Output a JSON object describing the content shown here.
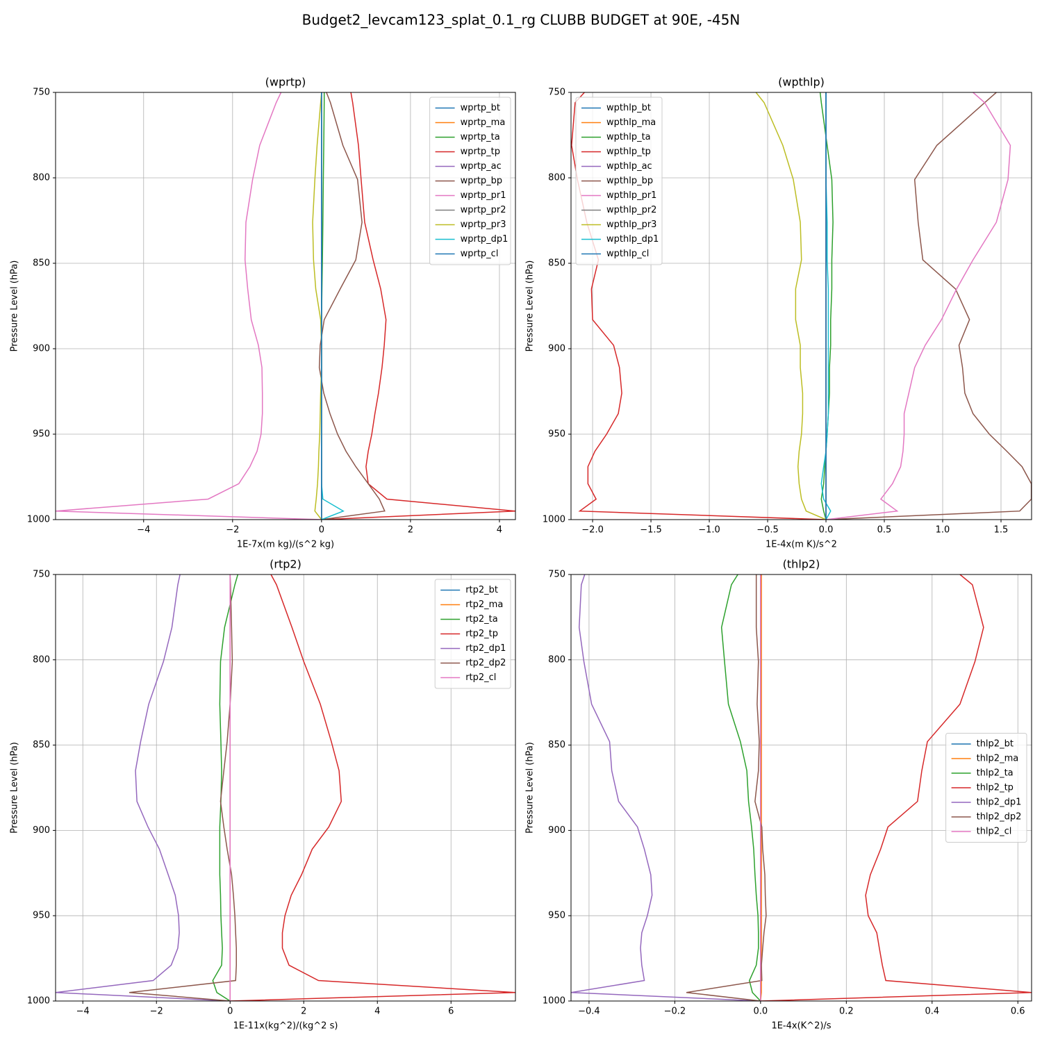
{
  "title": "Budget2_levcam123_splat_0.1_rg CLUBB BUDGET at 90E, -45N",
  "chart_data": [
    {
      "type": "line",
      "title": "(wprtp)",
      "xlabel": "1E-7x(m kg)/(s^2 kg)",
      "ylabel": "Pressure Level (hPa)",
      "y": [
        750,
        756,
        781,
        801,
        826,
        848,
        865,
        883,
        898,
        911,
        926,
        938,
        950,
        960,
        969,
        979,
        988,
        995,
        1000
      ],
      "xlim": [
        -5.98,
        4.36
      ],
      "ylim": [
        1000,
        750
      ],
      "xticks": [
        {
          "value": -4,
          "label": "−4"
        },
        {
          "value": -2,
          "label": "−2"
        },
        0,
        2,
        4
      ],
      "yticks": [
        750,
        800,
        850,
        900,
        950,
        1000
      ],
      "grid": true,
      "legend": "upper right",
      "series": [
        {
          "name": "wprtp_bt",
          "color": "#1f77b4",
          "values": [
            0,
            0,
            0,
            0,
            0,
            0,
            0,
            0,
            0,
            0,
            0,
            0,
            0,
            0,
            0,
            0,
            0,
            0,
            0
          ]
        },
        {
          "name": "wprtp_ma",
          "color": "#ff7f0e",
          "values": [
            0,
            0,
            0,
            0,
            0,
            0,
            0,
            0,
            0,
            0,
            0,
            0,
            0,
            0,
            0,
            0,
            0,
            0,
            0
          ]
        },
        {
          "name": "wprtp_ta",
          "color": "#2ca02c",
          "values": [
            0.06,
            0.06,
            0.05,
            0.04,
            0.03,
            0.02,
            0.01,
            0,
            0,
            0,
            0,
            0,
            0,
            0,
            0,
            0,
            0,
            0,
            0
          ]
        },
        {
          "name": "wprtp_tp",
          "color": "#d62728",
          "values": [
            0.66,
            0.7,
            0.83,
            0.89,
            0.97,
            1.16,
            1.33,
            1.45,
            1.41,
            1.36,
            1.28,
            1.2,
            1.13,
            1.05,
            1.0,
            1.05,
            1.47,
            4.36,
            0
          ]
        },
        {
          "name": "wprtp_ac",
          "color": "#9467bd",
          "values": [
            0,
            0,
            0,
            0,
            0,
            0,
            0,
            0,
            0,
            0,
            0,
            0,
            0,
            0,
            0,
            0,
            0,
            0,
            0
          ]
        },
        {
          "name": "wprtp_bp",
          "color": "#8c564b",
          "values": [
            0.11,
            0.2,
            0.48,
            0.81,
            0.91,
            0.77,
            0.42,
            0.06,
            -0.03,
            -0.05,
            0.05,
            0.19,
            0.36,
            0.55,
            0.77,
            1.05,
            1.3,
            1.42,
            0
          ]
        },
        {
          "name": "wprtp_pr1",
          "color": "#e377c2",
          "values": [
            -0.91,
            -1.02,
            -1.39,
            -1.55,
            -1.7,
            -1.72,
            -1.66,
            -1.58,
            -1.42,
            -1.34,
            -1.33,
            -1.33,
            -1.36,
            -1.45,
            -1.61,
            -1.86,
            -2.55,
            -5.98,
            0
          ]
        },
        {
          "name": "wprtp_pr2",
          "color": "#7f7f7f",
          "values": [
            0,
            0,
            0,
            0,
            0,
            0,
            0,
            0,
            0,
            0,
            0,
            0,
            0,
            0,
            0,
            0,
            0,
            0,
            0
          ]
        },
        {
          "name": "wprtp_pr3",
          "color": "#bcbd22",
          "values": [
            0,
            -0.02,
            -0.1,
            -0.15,
            -0.2,
            -0.18,
            -0.13,
            -0.02,
            0,
            0,
            -0.02,
            -0.03,
            -0.04,
            -0.06,
            -0.07,
            -0.09,
            -0.12,
            -0.15,
            0
          ]
        },
        {
          "name": "wprtp_dp1",
          "color": "#17becf",
          "values": [
            0,
            0,
            0,
            0,
            0,
            0,
            0,
            0,
            0,
            0,
            0,
            0,
            0,
            0,
            0,
            0,
            0.03,
            0.49,
            0
          ]
        },
        {
          "name": "wprtp_cl",
          "color": "#1f77b4",
          "values": [
            0,
            0,
            0,
            0,
            0,
            0,
            0,
            0,
            0,
            0,
            0,
            0,
            0,
            0,
            0,
            0,
            0,
            0,
            0
          ]
        }
      ]
    },
    {
      "type": "line",
      "title": "(wpthlp)",
      "xlabel": "1E-4x(m K)/s^2",
      "ylabel": "Pressure Level (hPa)",
      "y": [
        750,
        756,
        781,
        801,
        826,
        848,
        865,
        883,
        898,
        911,
        926,
        938,
        950,
        960,
        969,
        979,
        988,
        995,
        1000
      ],
      "xlim": [
        -2.185,
        1.762
      ],
      "ylim": [
        1000,
        750
      ],
      "xticks": [
        {
          "value": -2,
          "label": "−2.0"
        },
        {
          "value": -1.5,
          "label": "−1.5"
        },
        {
          "value": -1,
          "label": "−1.0"
        },
        {
          "value": -0.5,
          "label": "−0.5"
        },
        {
          "value": 0,
          "label": "0.0"
        },
        0.5,
        {
          "value": 1,
          "label": "1.0"
        },
        1.5
      ],
      "yticks": [
        750,
        800,
        850,
        900,
        950,
        1000
      ],
      "grid": true,
      "legend": "upper left",
      "series": [
        {
          "name": "wpthlp_bt",
          "color": "#1f77b4",
          "values": [
            0,
            0,
            0,
            0,
            0,
            0,
            0,
            0,
            0,
            0,
            0,
            0,
            0,
            0,
            0,
            0,
            0,
            0,
            0
          ]
        },
        {
          "name": "wpthlp_ma",
          "color": "#ff7f0e",
          "values": [
            0,
            0,
            0,
            0,
            0,
            0,
            0,
            0,
            0,
            0,
            0,
            0,
            0,
            0,
            0,
            0,
            0,
            0,
            0
          ]
        },
        {
          "name": "wpthlp_ta",
          "color": "#2ca02c",
          "values": [
            -0.05,
            -0.04,
            0.01,
            0.05,
            0.06,
            0.05,
            0.05,
            0.04,
            0.04,
            0.03,
            0.03,
            0.02,
            0.01,
            0,
            -0.01,
            -0.02,
            -0.04,
            -0.02,
            0
          ]
        },
        {
          "name": "wpthlp_tp",
          "color": "#d62728",
          "values": [
            -2.07,
            -2.15,
            -2.18,
            -2.13,
            -2.05,
            -1.95,
            -2.01,
            -2.0,
            -1.82,
            -1.77,
            -1.75,
            -1.78,
            -1.88,
            -1.98,
            -2.04,
            -2.04,
            -1.97,
            -2.11,
            0
          ]
        },
        {
          "name": "wpthlp_ac",
          "color": "#9467bd",
          "values": [
            0,
            0,
            0,
            0,
            0,
            0,
            0,
            0,
            0,
            0,
            0,
            0,
            0,
            0,
            0,
            0,
            0,
            0,
            0
          ]
        },
        {
          "name": "wpthlp_bp",
          "color": "#8c564b",
          "values": [
            1.46,
            1.36,
            0.95,
            0.76,
            0.79,
            0.83,
            1.11,
            1.23,
            1.14,
            1.17,
            1.19,
            1.26,
            1.4,
            1.55,
            1.68,
            1.76,
            1.76,
            1.66,
            0
          ]
        },
        {
          "name": "wpthlp_pr1",
          "color": "#e377c2",
          "values": [
            1.26,
            1.36,
            1.58,
            1.56,
            1.46,
            1.26,
            1.12,
            0.99,
            0.85,
            0.76,
            0.71,
            0.67,
            0.67,
            0.66,
            0.64,
            0.57,
            0.47,
            0.61,
            0
          ]
        },
        {
          "name": "wpthlp_pr2",
          "color": "#7f7f7f",
          "values": [
            0,
            0,
            0,
            0,
            0,
            0,
            0,
            0,
            0,
            0,
            0,
            0,
            0,
            0,
            0,
            0,
            0,
            0,
            0
          ]
        },
        {
          "name": "wpthlp_pr3",
          "color": "#bcbd22",
          "values": [
            -0.6,
            -0.53,
            -0.37,
            -0.28,
            -0.22,
            -0.21,
            -0.26,
            -0.26,
            -0.22,
            -0.22,
            -0.2,
            -0.2,
            -0.21,
            -0.23,
            -0.24,
            -0.23,
            -0.21,
            -0.17,
            0
          ]
        },
        {
          "name": "wpthlp_dp1",
          "color": "#17becf",
          "values": [
            0,
            0,
            0,
            0,
            0.01,
            0.01,
            0.02,
            0.02,
            0.02,
            0.02,
            0.02,
            0.02,
            0.01,
            0,
            -0.02,
            -0.04,
            -0.02,
            0.04,
            0
          ]
        },
        {
          "name": "wpthlp_cl",
          "color": "#1f77b4",
          "values": [
            0,
            0,
            0,
            0,
            0,
            0,
            0,
            0,
            0,
            0,
            0,
            0,
            0,
            0,
            0,
            0,
            0,
            0,
            0
          ]
        }
      ]
    },
    {
      "type": "line",
      "title": "(rtp2)",
      "xlabel": "1E-11x(kg^2)/(kg^2 s)",
      "ylabel": "Pressure Level (hPa)",
      "y": [
        750,
        756,
        781,
        801,
        826,
        848,
        865,
        883,
        898,
        911,
        926,
        938,
        950,
        960,
        969,
        979,
        988,
        995,
        1000
      ],
      "xlim": [
        -4.74,
        7.75
      ],
      "ylim": [
        1000,
        750
      ],
      "xticks": [
        {
          "value": -4,
          "label": "−4"
        },
        {
          "value": -2,
          "label": "−2"
        },
        0,
        2,
        4,
        6
      ],
      "yticks": [
        750,
        800,
        850,
        900,
        950,
        1000
      ],
      "grid": true,
      "legend": "upper right",
      "series": [
        {
          "name": "rtp2_bt",
          "color": "#1f77b4",
          "values": [
            0,
            0,
            0,
            0,
            0,
            0,
            0,
            0,
            0,
            0,
            0,
            0,
            0,
            0,
            0,
            0,
            0,
            0,
            0
          ]
        },
        {
          "name": "rtp2_ma",
          "color": "#ff7f0e",
          "values": [
            0,
            0,
            0,
            0,
            0,
            0,
            0,
            0,
            0,
            0,
            0,
            0,
            0,
            0,
            0,
            0,
            0,
            0,
            0
          ]
        },
        {
          "name": "rtp2_ta",
          "color": "#2ca02c",
          "values": [
            0.21,
            0.13,
            -0.15,
            -0.26,
            -0.28,
            -0.25,
            -0.23,
            -0.25,
            -0.28,
            -0.28,
            -0.28,
            -0.26,
            -0.25,
            -0.23,
            -0.21,
            -0.23,
            -0.47,
            -0.36,
            0
          ]
        },
        {
          "name": "rtp2_tp",
          "color": "#d62728",
          "values": [
            1.11,
            1.26,
            1.68,
            2.0,
            2.45,
            2.75,
            2.96,
            3.02,
            2.68,
            2.23,
            1.94,
            1.66,
            1.49,
            1.42,
            1.42,
            1.6,
            2.4,
            7.75,
            0
          ]
        },
        {
          "name": "rtp2_dp1",
          "color": "#9467bd",
          "values": [
            -1.36,
            -1.42,
            -1.58,
            -1.81,
            -2.21,
            -2.43,
            -2.57,
            -2.53,
            -2.23,
            -1.92,
            -1.68,
            -1.49,
            -1.4,
            -1.38,
            -1.42,
            -1.6,
            -2.09,
            -4.74,
            0
          ]
        },
        {
          "name": "rtp2_dp2",
          "color": "#8c564b",
          "values": [
            0,
            0.01,
            0.04,
            0.06,
            0,
            -0.08,
            -0.17,
            -0.26,
            -0.17,
            -0.08,
            0.04,
            0.09,
            0.13,
            0.15,
            0.17,
            0.17,
            0.15,
            -2.74,
            0
          ]
        },
        {
          "name": "rtp2_cl",
          "color": "#e377c2",
          "values": [
            0,
            0,
            0,
            0,
            0,
            0,
            0,
            0,
            0,
            0,
            0,
            0,
            0,
            0,
            0,
            0,
            0,
            0,
            0
          ]
        }
      ]
    },
    {
      "type": "line",
      "title": "(thlp2)",
      "xlabel": "1E-4x(K^2)/s",
      "ylabel": "Pressure Level (hPa)",
      "y": [
        750,
        756,
        781,
        801,
        826,
        848,
        865,
        883,
        898,
        911,
        926,
        938,
        950,
        960,
        969,
        979,
        988,
        995,
        1000
      ],
      "xlim": [
        -0.442,
        0.632
      ],
      "ylim": [
        1000,
        750
      ],
      "xticks": [
        {
          "value": -0.4,
          "label": "−0.4"
        },
        {
          "value": -0.2,
          "label": "−0.2"
        },
        {
          "value": 0,
          "label": "0.0"
        },
        0.2,
        0.4,
        0.6
      ],
      "yticks": [
        750,
        800,
        850,
        900,
        950,
        1000
      ],
      "grid": true,
      "legend": "center right",
      "series": [
        {
          "name": "thlp2_bt",
          "color": "#1f77b4",
          "values": [
            0,
            0,
            0,
            0,
            0,
            0,
            0,
            0,
            0,
            0,
            0,
            0,
            0,
            0,
            0,
            0,
            0,
            0,
            0
          ]
        },
        {
          "name": "thlp2_ma",
          "color": "#ff7f0e",
          "values": [
            0.002,
            0.002,
            0.002,
            0.002,
            0.002,
            0.002,
            0.002,
            0.002,
            0.002,
            0.002,
            0.002,
            0.002,
            0.002,
            0.002,
            0.002,
            0.002,
            0.002,
            0.002,
            0
          ]
        },
        {
          "name": "thlp2_ta",
          "color": "#2ca02c",
          "values": [
            -0.053,
            -0.068,
            -0.091,
            -0.084,
            -0.075,
            -0.047,
            -0.032,
            -0.028,
            -0.021,
            -0.016,
            -0.013,
            -0.01,
            -0.006,
            -0.005,
            -0.005,
            -0.01,
            -0.026,
            -0.019,
            0
          ]
        },
        {
          "name": "thlp2_tp",
          "color": "#d62728",
          "values": [
            0.465,
            0.494,
            0.52,
            0.5,
            0.465,
            0.389,
            0.376,
            0.366,
            0.297,
            0.28,
            0.256,
            0.245,
            0.251,
            0.271,
            0.277,
            0.284,
            0.292,
            0.632,
            0
          ]
        },
        {
          "name": "thlp2_dp1",
          "color": "#9467bd",
          "values": [
            -0.41,
            -0.418,
            -0.423,
            -0.412,
            -0.394,
            -0.352,
            -0.347,
            -0.331,
            -0.287,
            -0.271,
            -0.256,
            -0.253,
            -0.264,
            -0.277,
            -0.28,
            -0.277,
            -0.271,
            -0.442,
            0
          ]
        },
        {
          "name": "thlp2_dp2",
          "color": "#8c564b",
          "values": [
            -0.01,
            -0.01,
            -0.01,
            -0.005,
            -0.008,
            -0.003,
            -0.005,
            -0.013,
            0.003,
            0.005,
            0.01,
            0.011,
            0.013,
            0.008,
            0.005,
            0.002,
            0.003,
            -0.173,
            0
          ]
        },
        {
          "name": "thlp2_cl",
          "color": "#e377c2",
          "values": [
            0,
            0,
            0,
            0,
            0,
            0,
            0,
            0,
            0,
            0,
            0,
            0,
            0,
            0,
            0,
            0,
            0,
            0,
            0
          ]
        }
      ]
    }
  ]
}
